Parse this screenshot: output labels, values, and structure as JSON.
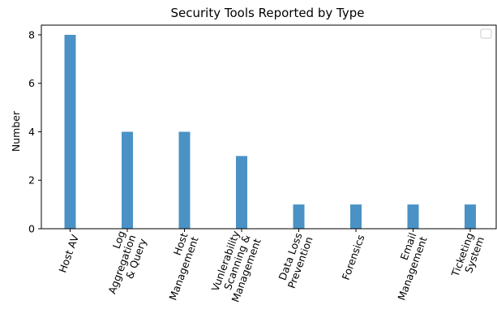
{
  "chart_data": {
    "type": "bar",
    "title": "Security Tools Reported by Type",
    "xlabel": "",
    "ylabel": "Number",
    "categories": [
      [
        "Host AV"
      ],
      [
        "Log",
        "Aggregation",
        "& Query"
      ],
      [
        "Host",
        "Management"
      ],
      [
        "Vunlerability",
        "Scanning &",
        "Management"
      ],
      [
        "Data Loss",
        "Prevention"
      ],
      [
        "Forensics"
      ],
      [
        "Email",
        "Management"
      ],
      [
        "Ticketing",
        "System"
      ]
    ],
    "values": [
      8,
      4,
      4,
      3,
      1,
      1,
      1,
      1
    ],
    "ylim": [
      0,
      8.4
    ],
    "yticks": [
      "0",
      "2",
      "4",
      "6",
      "8"
    ],
    "legend": "top-right (empty)",
    "grid": false,
    "bar_color": "#4a92c5"
  }
}
